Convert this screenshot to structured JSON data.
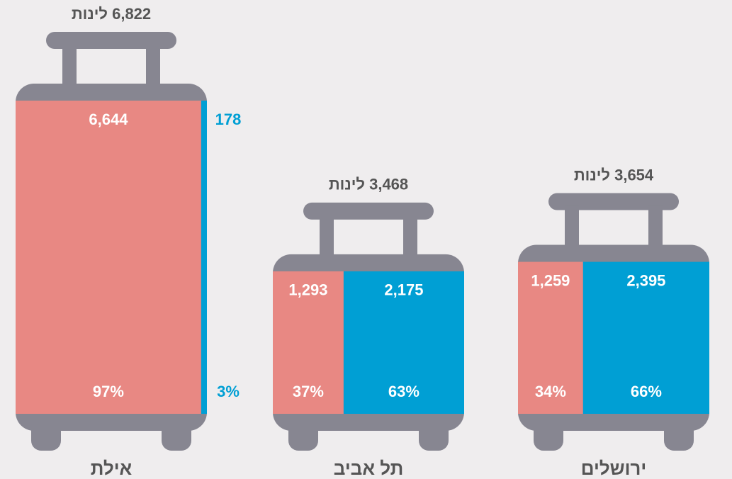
{
  "chart_data": {
    "type": "bar",
    "categories": [
      "אילת",
      "תל אביב",
      "ירושלים"
    ],
    "totals": [
      6822,
      3468,
      3654
    ],
    "total_labels": [
      "6,822 לינות",
      "3,468 לינות",
      "3,654 לינות"
    ],
    "series": [
      {
        "color": "#e88883",
        "values": [
          6644,
          1293,
          1259
        ],
        "value_labels": [
          "6,644",
          "1,293",
          "1,259"
        ],
        "shares": [
          97,
          37,
          34
        ],
        "share_labels": [
          "97%",
          "37%",
          "34%"
        ]
      },
      {
        "color": "#009fd4",
        "values": [
          178,
          2175,
          2395
        ],
        "value_labels": [
          "178",
          "2,175",
          "2,395"
        ],
        "shares": [
          3,
          63,
          66
        ],
        "share_labels": [
          "3%",
          "63%",
          "66%"
        ]
      }
    ],
    "frame_color": "#878691"
  }
}
